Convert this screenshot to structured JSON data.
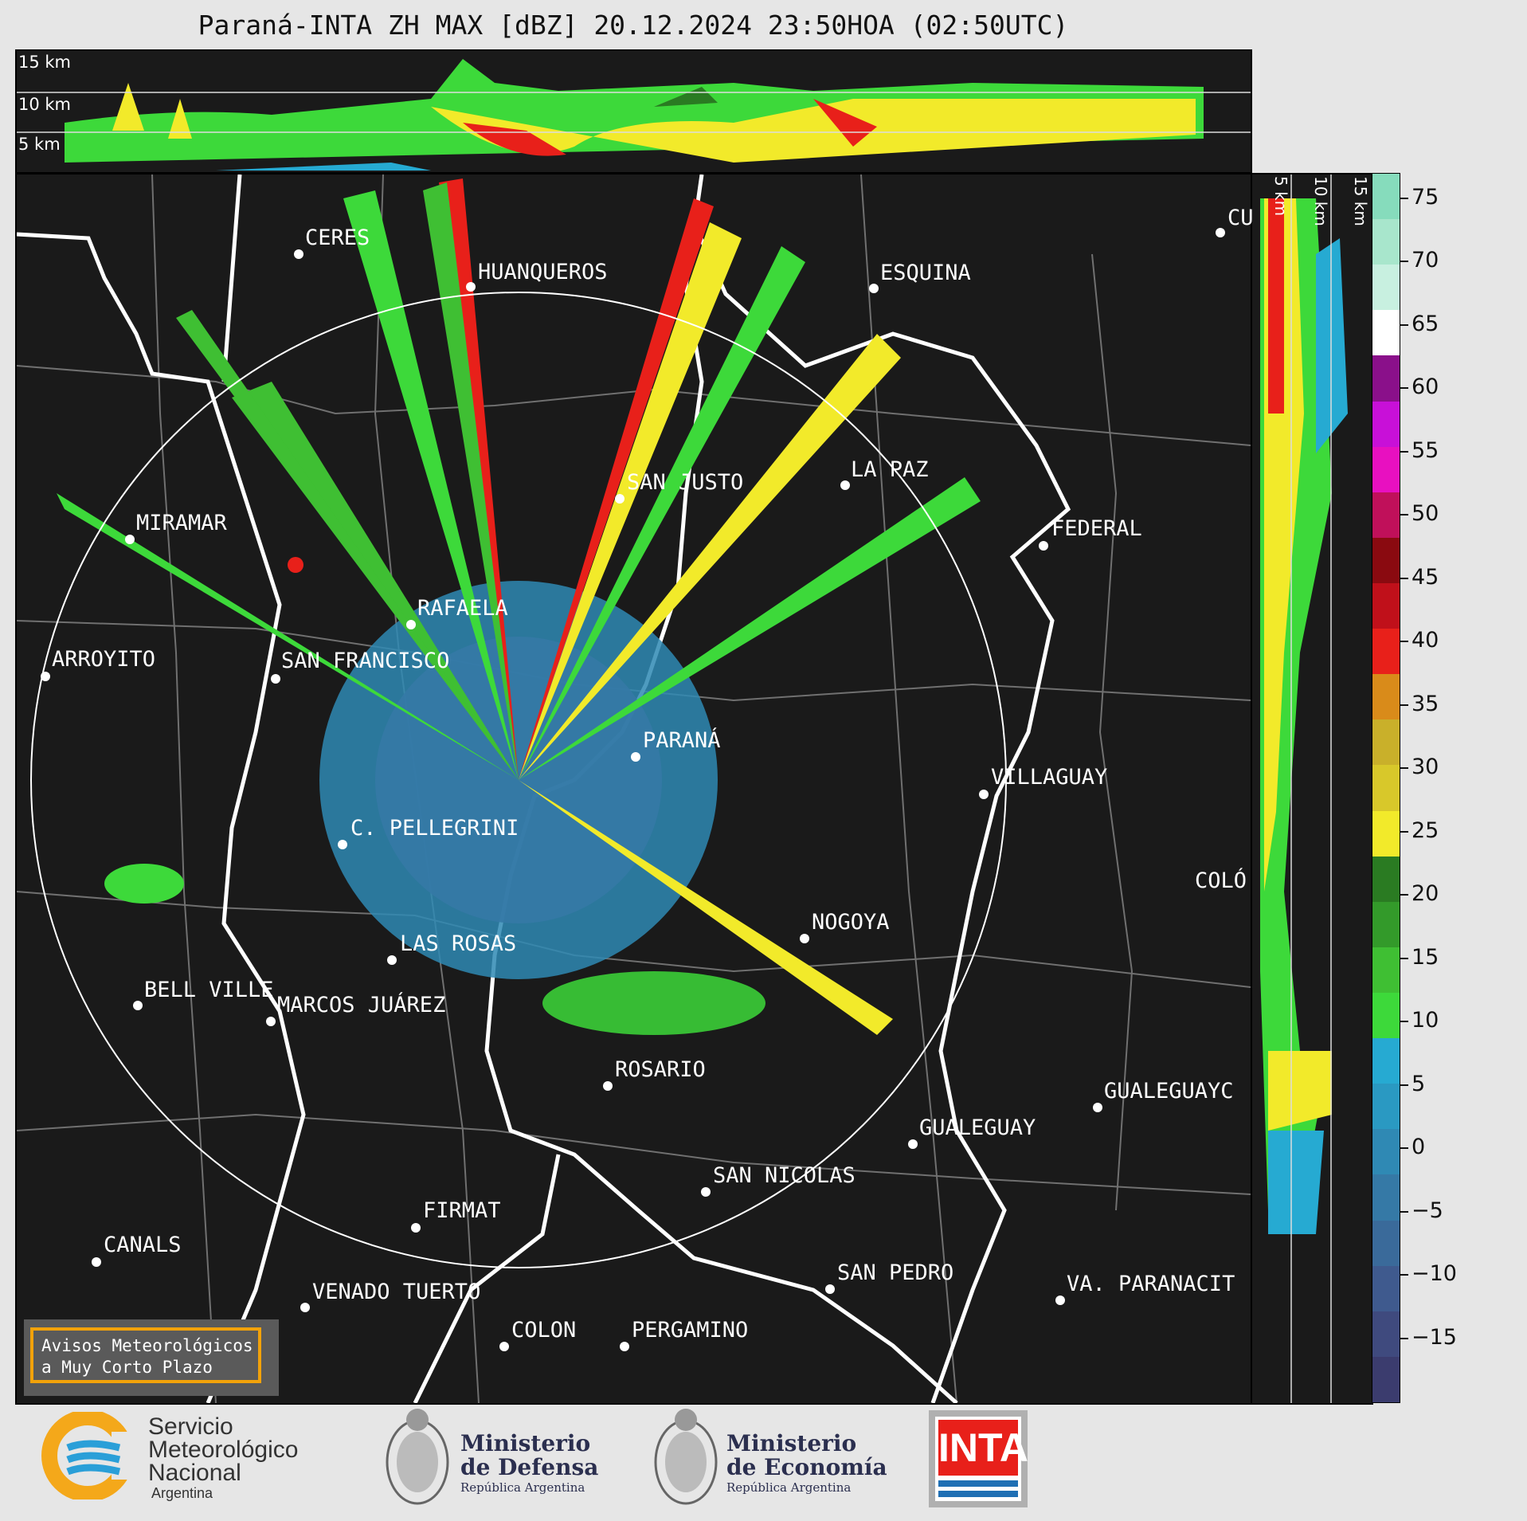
{
  "title": "Paraná-INTA ZH MAX [dBZ] 20.12.2024 23:50HOA (02:50UTC)",
  "top_panel": {
    "km_labels": [
      "15 km",
      "10 km",
      "5 km"
    ]
  },
  "right_panel": {
    "km_labels": [
      "5 km",
      "10 km",
      "15 km"
    ]
  },
  "cities": [
    {
      "name": "CERES"
    },
    {
      "name": "HUANQUEROS"
    },
    {
      "name": "ESQUINA"
    },
    {
      "name": "CU"
    },
    {
      "name": "SAN JUSTO"
    },
    {
      "name": "LA PAZ"
    },
    {
      "name": "MIRAMAR"
    },
    {
      "name": "FEDERAL"
    },
    {
      "name": "RAFAELA"
    },
    {
      "name": "ARROYITO"
    },
    {
      "name": "SAN FRANCISCO"
    },
    {
      "name": "PARANÁ"
    },
    {
      "name": "VILLAGUAY"
    },
    {
      "name": "C. PELLEGRINI"
    },
    {
      "name": "COLÓ"
    },
    {
      "name": "NOGOYA"
    },
    {
      "name": "LAS ROSAS"
    },
    {
      "name": "BELL VILLE"
    },
    {
      "name": "MARCOS JUÁREZ"
    },
    {
      "name": "ROSARIO"
    },
    {
      "name": "GUALEGUAYC"
    },
    {
      "name": "GUALEGUAY"
    },
    {
      "name": "SAN NICOLAS"
    },
    {
      "name": "FIRMAT"
    },
    {
      "name": "CANALS"
    },
    {
      "name": "SAN PEDRO"
    },
    {
      "name": "VA. PARANACIT"
    },
    {
      "name": "VENADO TUERTO"
    },
    {
      "name": "COLON"
    },
    {
      "name": "PERGAMINO"
    }
  ],
  "warning_box": {
    "line1": "Avisos Meteorológicos",
    "line2": "a Muy Corto Plazo"
  },
  "colorbar": {
    "range": [
      -20,
      77
    ],
    "ticks": [
      "75",
      "70",
      "65",
      "60",
      "55",
      "50",
      "45",
      "40",
      "35",
      "30",
      "25",
      "20",
      "15",
      "10",
      "5",
      "0",
      "−5",
      "−10",
      "−15"
    ],
    "tick_values": [
      75,
      70,
      65,
      60,
      55,
      50,
      45,
      40,
      35,
      30,
      25,
      20,
      15,
      10,
      5,
      0,
      -5,
      -10,
      -15
    ],
    "colors": [
      "#3b3c6e",
      "#3f4a7e",
      "#3f5a8e",
      "#3a6a9a",
      "#3579a6",
      "#2f89b4",
      "#2a99c2",
      "#26aad2",
      "#3dd93a",
      "#3fbf33",
      "#339a2a",
      "#2a7b22",
      "#f2ea2a",
      "#d8c82a",
      "#c9b02a",
      "#d98b1a",
      "#e8201a",
      "#c0101a",
      "#8a0a10",
      "#c0105a",
      "#e810c0",
      "#c810d8",
      "#8a108a",
      "#ffffff",
      "#c8f0e0",
      "#a8e6cc",
      "#86dcbc"
    ]
  },
  "logos": {
    "smn": {
      "line1": "Servicio",
      "line2": "Meteorológico",
      "line3": "Nacional",
      "line4": "Argentina"
    },
    "defensa": {
      "line1": "Ministerio",
      "line2": "de Defensa",
      "line3": "República Argentina"
    },
    "economia": {
      "line1": "Ministerio",
      "line2": "de Economía",
      "line3": "República Argentina"
    },
    "inta": {
      "text": "INTA"
    }
  }
}
